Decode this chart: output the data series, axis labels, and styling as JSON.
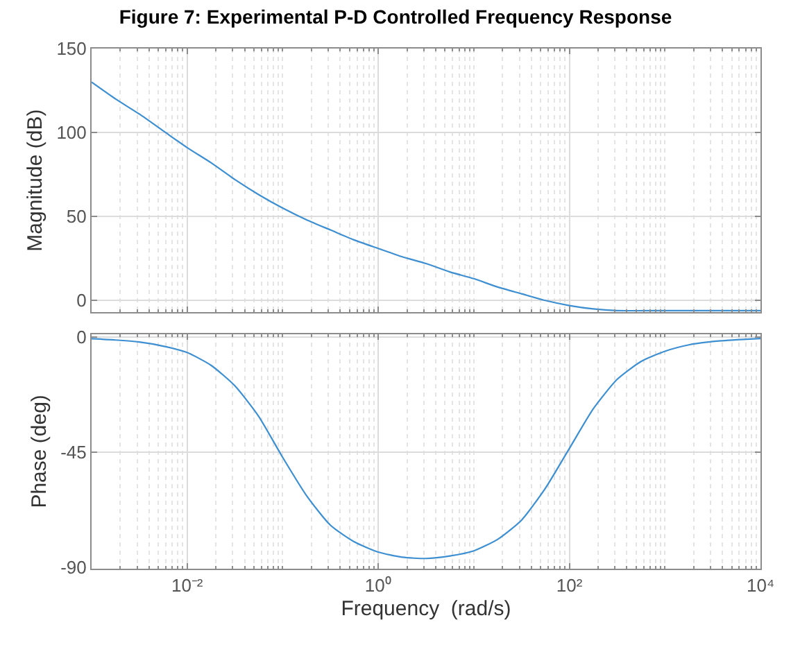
{
  "chart_data": [
    {
      "type": "line",
      "title": "Figure 7: Experimental P-D Controlled Frequency Response",
      "ylabel": "Magnitude (dB)",
      "log": "x",
      "grid": true,
      "tick_labels": "y",
      "line_style": "solid",
      "marker": "none",
      "x": [
        0.001,
        0.00178,
        0.00316,
        0.00562,
        0.01,
        0.0178,
        0.0316,
        0.0562,
        0.1,
        0.178,
        0.316,
        0.562,
        1,
        1.78,
        3.16,
        5.62,
        10,
        17.8,
        31.6,
        56.2,
        100,
        178,
        316,
        1000,
        3162,
        10000
      ],
      "series": [
        {
          "color": "#3d8fd1",
          "values": [
            130,
            120,
            111,
            101,
            91,
            82,
            72,
            63,
            55,
            48,
            42,
            36,
            31,
            26,
            22,
            17,
            13,
            8,
            4,
            0,
            -3,
            -5,
            -6,
            -6,
            -6,
            -6
          ]
        }
      ],
      "xlim": [
        0.001,
        10000
      ],
      "xticks": [
        {
          "value": 0.01,
          "label": null
        },
        {
          "value": 1,
          "label": null
        },
        {
          "value": 100,
          "label": null
        },
        {
          "value": 10000,
          "label": null
        }
      ],
      "ylim": [
        -7,
        150
      ],
      "yticks": [
        0,
        50,
        100,
        150
      ]
    },
    {
      "type": "line",
      "xlabel": "Frequency  (rad/s)",
      "ylabel": "Phase (deg)",
      "log": "x",
      "grid": true,
      "line_style": "solid",
      "marker": "none",
      "x": [
        0.001,
        0.00178,
        0.00316,
        0.00562,
        0.01,
        0.0178,
        0.0316,
        0.0562,
        0.1,
        0.178,
        0.316,
        0.562,
        1,
        1.78,
        3.16,
        5.62,
        10,
        17.8,
        31.6,
        56.2,
        100,
        178,
        316,
        562,
        1000,
        1778,
        3162,
        5623,
        10000
      ],
      "series": [
        {
          "color": "#3d8fd1",
          "values": [
            -0.6,
            -1.1,
            -1.9,
            -3.5,
            -6,
            -11,
            -19,
            -31,
            -47,
            -62,
            -73.5,
            -80,
            -84,
            -86,
            -86.5,
            -85.5,
            -83.5,
            -79,
            -71.5,
            -59,
            -43.5,
            -28,
            -16.5,
            -9.5,
            -5.5,
            -3,
            -1.7,
            -1,
            -0.5
          ]
        }
      ],
      "xlim": [
        0.001,
        10000
      ],
      "xticks": [
        {
          "value": 0.01,
          "label": "10⁻²"
        },
        {
          "value": 1,
          "label": "10⁰"
        },
        {
          "value": 100,
          "label": "10²"
        },
        {
          "value": 10000,
          "label": "10⁴"
        }
      ],
      "ylim": [
        -90.5,
        1.2
      ],
      "yticks": [
        -90,
        -45,
        0
      ]
    }
  ]
}
